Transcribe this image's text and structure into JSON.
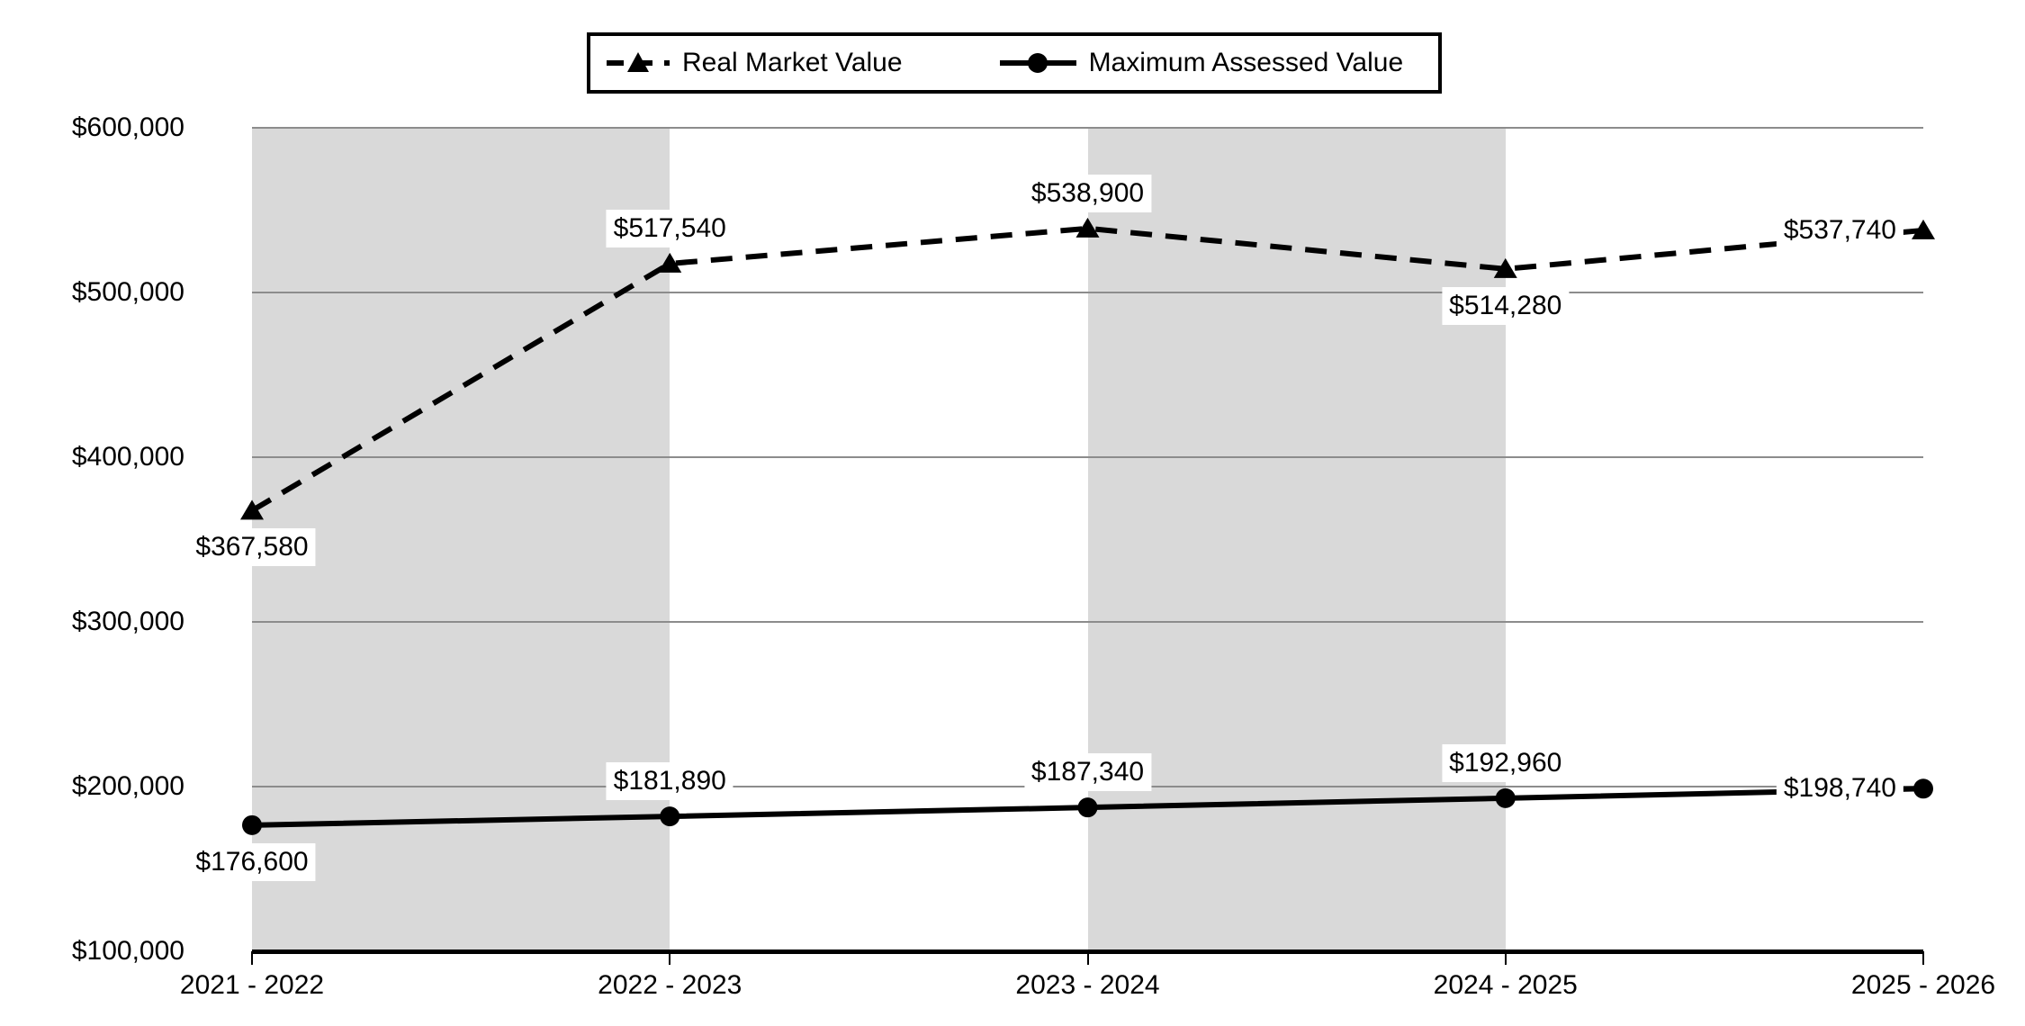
{
  "chart_data": {
    "type": "line",
    "title": "",
    "categories": [
      "2021 - 2022",
      "2022 - 2023",
      "2023 - 2024",
      "2024 - 2025",
      "2025 - 2026"
    ],
    "series": [
      {
        "name": "Real Market Value",
        "values": [
          367580,
          517540,
          538900,
          514280,
          537740
        ],
        "labels": [
          "$367,580",
          "$517,540",
          "$538,900",
          "$514,280",
          "$537,740"
        ],
        "label_placements": [
          "below",
          "above",
          "above",
          "below",
          "left"
        ],
        "line_style": "dashed",
        "marker": "triangle"
      },
      {
        "name": "Maximum Assessed Value",
        "values": [
          176600,
          181890,
          187340,
          192960,
          198740
        ],
        "labels": [
          "$176,600",
          "$181,890",
          "$187,340",
          "$192,960",
          "$198,740"
        ],
        "label_placements": [
          "below",
          "above",
          "above",
          "above",
          "left"
        ],
        "line_style": "solid",
        "marker": "circle"
      }
    ],
    "y_axis": {
      "tick_labels": [
        "$600,000",
        "$500,000",
        "$400,000",
        "$300,000",
        "$200,000",
        "$100,000"
      ],
      "tick_values": [
        600000,
        500000,
        400000,
        300000,
        200000,
        100000
      ],
      "ylim": [
        100000,
        600000
      ]
    },
    "xlabel": "",
    "ylabel": "",
    "legend_position": "top",
    "grid": "horizontal",
    "plot_bands": "alternating gray shading on category intervals 1 and 3",
    "colors": {
      "series": "#000000",
      "band": "#d9d9d9",
      "gridline": "#8c8c8c",
      "background": "#ffffff",
      "label_background": "#ffffff"
    }
  }
}
